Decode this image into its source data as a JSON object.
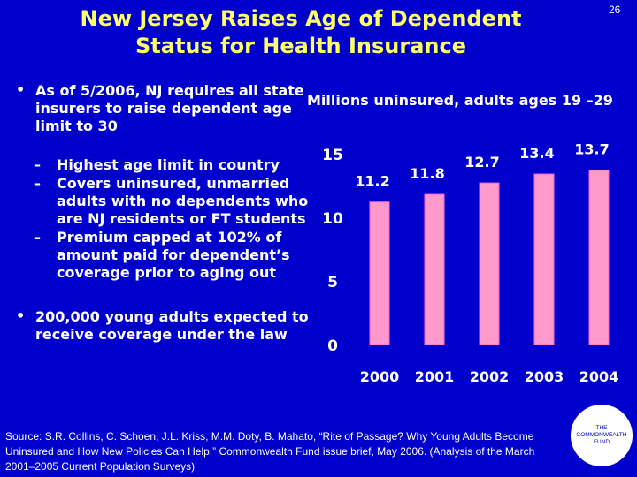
{
  "slide": {
    "title_line1": "New Jersey Raises Age of Dependent",
    "title_line2": "Status for Health Insurance",
    "number": "26"
  },
  "bullets": {
    "main1": "As of 5/2006, NJ requires all state insurers to raise dependent age limit to 30",
    "subs": [
      "Highest age limit in country",
      "Covers uninsured, unmarried adults with no dependents who are NJ residents or FT students",
      "Premium capped at 102% of amount paid for dependent’s coverage prior to aging out"
    ],
    "main2": "200,000 young adults expected to receive coverage under the law"
  },
  "source": "Source: S.R. Collins, C. Schoen, J.L. Kriss, M.M. Doty, B. Mahato, “Rite of Passage? Why Young Adults Become Uninsured and How New Policies Can Help,” Commonwealth Fund issue brief, May 2006. (Analysis of the March 2001–2005 Current Population Surveys)",
  "logo": {
    "line1": "THE",
    "line2": "COMMONWEALTH",
    "line3": "FUND"
  },
  "colors": {
    "background": "#0000cc",
    "title": "#ffff66",
    "bar": "#ff99cc",
    "bar_edge": "#ff66cc"
  },
  "chart_data": {
    "type": "bar",
    "title": "Millions uninsured, adults ages 19 –29",
    "categories": [
      "2000",
      "2001",
      "2002",
      "2003",
      "2004"
    ],
    "values": [
      11.2,
      11.8,
      12.7,
      13.4,
      13.7
    ],
    "value_labels": [
      "11.2",
      "11.8",
      "12.7",
      "13.4",
      "13.7"
    ],
    "yticks": [
      0,
      5,
      10,
      15
    ],
    "ytick_labels": [
      "0",
      "5",
      "10",
      "15"
    ],
    "ylim": [
      0,
      15
    ],
    "xlabel": "",
    "ylabel": ""
  }
}
